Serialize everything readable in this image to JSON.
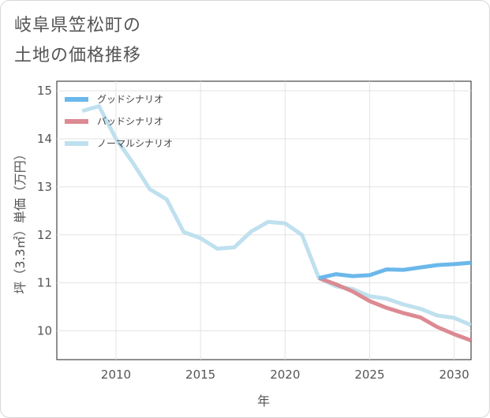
{
  "page": {
    "title_line1": "岐阜県笠松町の",
    "title_line2": "土地の価格推移"
  },
  "chart_data": {
    "type": "line",
    "xlabel": "年",
    "ylabel": "坪（3.3㎡）単価（万円）",
    "xlim": [
      2006.5,
      2031
    ],
    "ylim": [
      9.4,
      15.2
    ],
    "x_ticks": [
      2010,
      2015,
      2020,
      2025,
      2030
    ],
    "y_ticks": [
      10,
      11,
      12,
      13,
      14,
      15
    ],
    "grid": true,
    "legend_position": "top-left",
    "series": [
      {
        "name": "グッドシナリオ",
        "color": "#6bb8ea",
        "x": [
          2022,
          2023,
          2024,
          2025,
          2026,
          2027,
          2028,
          2029,
          2030,
          2031
        ],
        "values": [
          11.1,
          11.18,
          11.14,
          11.16,
          11.28,
          11.27,
          11.32,
          11.37,
          11.39,
          11.42
        ]
      },
      {
        "name": "バッドシナリオ",
        "color": "#dc8a92",
        "x": [
          2022,
          2023,
          2024,
          2025,
          2026,
          2027,
          2028,
          2029,
          2030,
          2031
        ],
        "values": [
          11.1,
          10.97,
          10.82,
          10.62,
          10.48,
          10.37,
          10.28,
          10.08,
          9.93,
          9.8
        ]
      },
      {
        "name": "ノーマルシナリオ",
        "color": "#bfe0ee",
        "x": [
          2008,
          2009,
          2010,
          2011,
          2012,
          2013,
          2014,
          2015,
          2016,
          2017,
          2018,
          2019,
          2020,
          2021,
          2022,
          2023,
          2024,
          2025,
          2026,
          2027,
          2028,
          2029,
          2030,
          2031
        ],
        "values": [
          14.58,
          14.68,
          14.0,
          13.5,
          12.95,
          12.74,
          12.06,
          11.93,
          11.71,
          11.74,
          12.07,
          12.27,
          12.24,
          12.0,
          11.1,
          10.93,
          10.87,
          10.72,
          10.67,
          10.55,
          10.46,
          10.32,
          10.27,
          10.12
        ]
      }
    ]
  }
}
